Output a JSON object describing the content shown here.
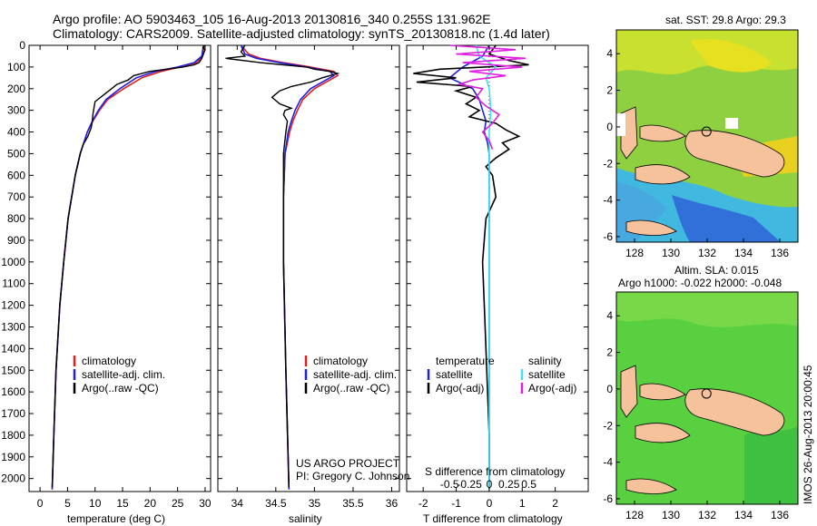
{
  "header": {
    "title_line1": "Argo profile: AO 5903463_105 16-Aug-2013 20130816_340 0.255S 131.962E",
    "title_line2": "Climatology: CARS2009. Satellite-adjusted climatology: synTS_20130818.nc (1.4d later)"
  },
  "chart_data": [
    {
      "type": "line",
      "xlabel": "temperature (deg C)",
      "ylabel": "",
      "xlim": [
        -2,
        31
      ],
      "ylim": [
        2060,
        0
      ],
      "xticks": [
        0,
        5,
        10,
        15,
        20,
        25,
        30
      ],
      "yticks": [
        0,
        100,
        200,
        300,
        400,
        500,
        600,
        700,
        800,
        900,
        1000,
        1100,
        1200,
        1300,
        1400,
        1500,
        1600,
        1700,
        1800,
        1900,
        2000
      ],
      "legend": [
        "climatology",
        "satellite-adj. clim.",
        "Argo(..raw -QC)"
      ],
      "series": [
        {
          "name": "climatology",
          "color": "#e02020",
          "depth": [
            0,
            50,
            80,
            100,
            120,
            150,
            200,
            250,
            300,
            350,
            400,
            500,
            600,
            800,
            1000,
            1200,
            1500,
            1800,
            2050
          ],
          "values": [
            29.8,
            29.5,
            28.5,
            25.5,
            22.0,
            18.5,
            15.2,
            12.3,
            10.8,
            9.6,
            8.6,
            7.3,
            6.4,
            5.1,
            4.3,
            3.6,
            2.9,
            2.5,
            2.2
          ]
        },
        {
          "name": "satellite-adj. clim.",
          "color": "#2020e0",
          "depth": [
            0,
            50,
            80,
            100,
            120,
            150,
            200,
            250,
            300,
            350,
            400,
            500,
            600,
            800,
            1000,
            1200,
            1500,
            1800,
            2050
          ],
          "values": [
            29.7,
            29.4,
            28.0,
            25.0,
            21.0,
            17.5,
            14.5,
            12.0,
            10.6,
            9.5,
            8.6,
            7.3,
            6.4,
            5.1,
            4.3,
            3.6,
            2.9,
            2.5,
            2.2
          ]
        },
        {
          "name": "Argo(..raw -QC)",
          "color": "#000000",
          "depth": [
            0,
            10,
            20,
            40,
            60,
            80,
            90,
            100,
            110,
            120,
            140,
            160,
            180,
            200,
            230,
            260,
            290,
            320,
            350,
            380,
            420,
            460,
            500,
            600,
            800,
            1000,
            1200,
            1500,
            1800,
            2040
          ],
          "values": [
            29.9,
            29.6,
            30.0,
            29.7,
            29.4,
            28.9,
            28.0,
            26.0,
            23.0,
            20.0,
            17.0,
            16.0,
            14.0,
            13.0,
            11.5,
            10.0,
            9.8,
            9.6,
            9.5,
            9.3,
            8.7,
            7.8,
            7.3,
            6.4,
            5.1,
            4.3,
            3.6,
            2.9,
            2.5,
            2.2
          ]
        }
      ]
    },
    {
      "type": "line",
      "xlabel": "salinity",
      "ylabel": "",
      "xlim": [
        33.75,
        36.1
      ],
      "ylim": [
        2060,
        0
      ],
      "xticks": [
        34,
        34.5,
        35,
        35.5,
        36
      ],
      "legend": [
        "climatology",
        "satellite-adj. clim.",
        "Argo(..raw -QC)"
      ],
      "annotation": [
        "US ARGO PROJECT",
        "PI: Gregory C. Johnson"
      ],
      "series": [
        {
          "name": "climatology",
          "color": "#e02020",
          "depth": [
            0,
            40,
            60,
            80,
            100,
            120,
            140,
            160,
            200,
            250,
            300,
            350,
            400,
            500,
            700,
            1000,
            1500,
            2050
          ],
          "values": [
            34.05,
            34.15,
            34.3,
            34.6,
            34.95,
            35.25,
            35.3,
            35.2,
            35.0,
            34.85,
            34.78,
            34.72,
            34.68,
            34.62,
            34.6,
            34.6,
            34.63,
            34.67
          ]
        },
        {
          "name": "satellite-adj. clim.",
          "color": "#2020e0",
          "depth": [
            0,
            40,
            60,
            80,
            100,
            120,
            140,
            160,
            200,
            250,
            300,
            350,
            400,
            500,
            700,
            1000,
            1500,
            2050
          ],
          "values": [
            34.05,
            34.1,
            34.25,
            34.55,
            34.9,
            35.2,
            35.25,
            35.15,
            34.95,
            34.82,
            34.75,
            34.7,
            34.66,
            34.62,
            34.6,
            34.6,
            34.63,
            34.67
          ]
        },
        {
          "name": "Argo(..raw -QC)",
          "color": "#000000",
          "depth": [
            0,
            30,
            50,
            60,
            80,
            90,
            100,
            110,
            120,
            130,
            150,
            170,
            190,
            210,
            240,
            270,
            290,
            300,
            320,
            350,
            400,
            500,
            700,
            1000,
            1500,
            2040
          ],
          "values": [
            34.1,
            34.05,
            34.1,
            33.85,
            34.3,
            34.6,
            34.9,
            35.0,
            35.2,
            35.3,
            35.1,
            34.95,
            34.7,
            34.55,
            34.45,
            34.55,
            34.7,
            34.62,
            34.6,
            34.65,
            34.63,
            34.6,
            34.6,
            34.6,
            34.63,
            34.67
          ]
        }
      ]
    },
    {
      "type": "line",
      "xlabel": "T difference from climatology",
      "xlabel2": "S difference from climatology",
      "xlim": [
        -2.5,
        3
      ],
      "ylim": [
        2060,
        0
      ],
      "xticks": [
        -2,
        -1,
        0,
        1,
        2
      ],
      "xticks2": [
        -0.5,
        -0.25,
        0,
        0.25,
        0.5
      ],
      "legend_left_title": "temperature",
      "legend_right_title": "salinity",
      "legend": [
        "satellite",
        "Argo(-adj)",
        "satellite",
        "Argo(-adj)"
      ],
      "series": [
        {
          "name": "temperature satellite",
          "color": "#2020e0",
          "depth": [
            0,
            50,
            100,
            150,
            200,
            250,
            300,
            350,
            400,
            450,
            500,
            600,
            800,
            1000,
            1200,
            1500,
            1800,
            2050
          ],
          "values": [
            0.0,
            -0.2,
            -0.8,
            -1.2,
            -0.5,
            -0.3,
            -0.2,
            -0.1,
            -0.15,
            -0.05,
            0.0,
            0.0,
            0.0,
            0.0,
            0.0,
            0.0,
            0.0,
            0.0
          ]
        },
        {
          "name": "temperature Argo(-adj)",
          "color": "#000000",
          "depth": [
            0,
            40,
            70,
            90,
            110,
            130,
            150,
            170,
            190,
            210,
            240,
            270,
            300,
            330,
            360,
            390,
            420,
            450,
            480,
            520,
            560,
            600,
            700,
            800,
            1000,
            1200,
            1400,
            1600,
            1800,
            2040
          ],
          "values": [
            0.2,
            0.0,
            0.6,
            1.2,
            -1.5,
            -2.3,
            -1.0,
            -2.2,
            -0.5,
            -1.0,
            -0.4,
            -0.7,
            -0.3,
            -0.6,
            0.2,
            0.5,
            0.9,
            0.4,
            0.6,
            0.2,
            -0.1,
            0.1,
            0.2,
            -0.1,
            -0.2,
            -0.15,
            -0.1,
            -0.05,
            0.0,
            0.0
          ]
        },
        {
          "name": "salinity satellite",
          "color": "#40e0f0",
          "depth": [
            0,
            50,
            100,
            150,
            200,
            300,
            400,
            500,
            700,
            1000,
            1500,
            2050
          ],
          "values": [
            -0.4,
            -0.3,
            0.2,
            -0.1,
            0.0,
            0.05,
            0.0,
            0.0,
            0.0,
            0.0,
            0.0,
            0.0
          ]
        },
        {
          "name": "salinity Argo(-adj)",
          "color": "#e020e0",
          "depth": [
            0,
            20,
            40,
            60,
            80,
            100,
            120,
            140,
            160,
            180,
            200,
            240,
            280,
            320,
            360,
            400,
            440,
            480
          ],
          "values": [
            -1.2,
            0.8,
            -1.0,
            1.1,
            -0.8,
            1.0,
            -0.6,
            0.5,
            -0.5,
            -0.9,
            -0.2,
            -0.4,
            -0.1,
            0.3,
            0.1,
            -0.2,
            0.0,
            0.1
          ]
        }
      ]
    },
    {
      "type": "heatmap",
      "title": "sat. SST: 29.8 Argo: 29.3",
      "xlim": [
        127,
        137
      ],
      "ylim": [
        -6.3,
        5.3
      ],
      "xticks": [
        128,
        130,
        132,
        134,
        136
      ],
      "yticks": [
        4,
        2,
        0,
        -2,
        -4,
        -6
      ],
      "argo_position": [
        131.962,
        -0.255
      ]
    },
    {
      "type": "heatmap",
      "title_line1": "Altim. SLA: 0.015",
      "title_line2": "Argo h1000: -0.022 h2000: -0.048",
      "xlim": [
        127,
        137
      ],
      "ylim": [
        -6.3,
        5.3
      ],
      "xticks": [
        128,
        130,
        132,
        134,
        136
      ],
      "yticks": [
        4,
        2,
        0,
        -2,
        -4,
        -6
      ],
      "argo_position": [
        131.962,
        -0.255
      ]
    }
  ],
  "footer": {
    "watermark": "IMOS 26-Aug-2013 20:00:45"
  },
  "colors": {
    "red": "#e02020",
    "blue": "#2020e0",
    "black": "#000000",
    "cyan": "#40e0f0",
    "magenta": "#e020e0",
    "land": "#f5c29c"
  }
}
